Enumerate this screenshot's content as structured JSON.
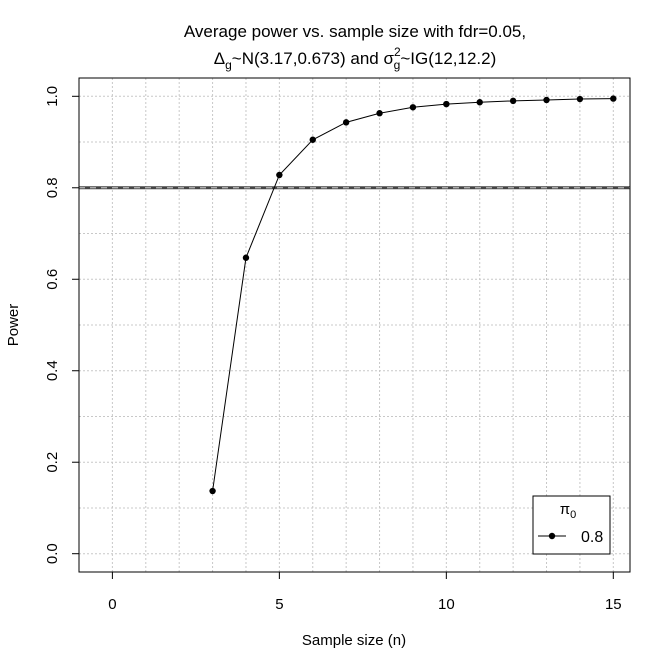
{
  "chart_data": {
    "type": "line",
    "title_line1": "Average power vs. sample size with fdr=0.05,",
    "title_line2_parts": {
      "delta": "Δ",
      "delta_sub": "g",
      "delta_dist": "~N(3.17,0.673) and ",
      "sigma": "σ",
      "sigma_sup": "2",
      "sigma_sub": "g",
      "sigma_dist": "~IG(12,12.2)"
    },
    "xlabel": "Sample size (n)",
    "ylabel": "Power",
    "xlim": [
      -1,
      15.5
    ],
    "ylim": [
      -0.04,
      1.04
    ],
    "x_ticks": [
      0,
      5,
      10,
      15
    ],
    "y_ticks": [
      0.0,
      0.2,
      0.4,
      0.6,
      0.8,
      1.0
    ],
    "y_tick_labels": [
      "0.0",
      "0.2",
      "0.4",
      "0.6",
      "0.8",
      "1.0"
    ],
    "x_grid": [
      0,
      1,
      2,
      3,
      4,
      5,
      6,
      7,
      8,
      9,
      10,
      11,
      12,
      13,
      14,
      15
    ],
    "y_grid": [
      0.0,
      0.1,
      0.2,
      0.3,
      0.4,
      0.5,
      0.6,
      0.7,
      0.8,
      0.9,
      1.0
    ],
    "grid": true,
    "reference_line": {
      "y": 0.8,
      "style": "dashed"
    },
    "series": [
      {
        "name": "0.8",
        "x": [
          3,
          4,
          5,
          6,
          7,
          8,
          9,
          10,
          11,
          12,
          13,
          14,
          15
        ],
        "values": [
          0.137,
          0.647,
          0.828,
          0.905,
          0.943,
          0.963,
          0.976,
          0.983,
          0.987,
          0.99,
          0.992,
          0.994,
          0.995
        ],
        "color": "#000000"
      }
    ],
    "legend": {
      "title": "π",
      "title_sub": "0",
      "placement": "bottom-right",
      "entries": [
        "0.8"
      ]
    }
  }
}
